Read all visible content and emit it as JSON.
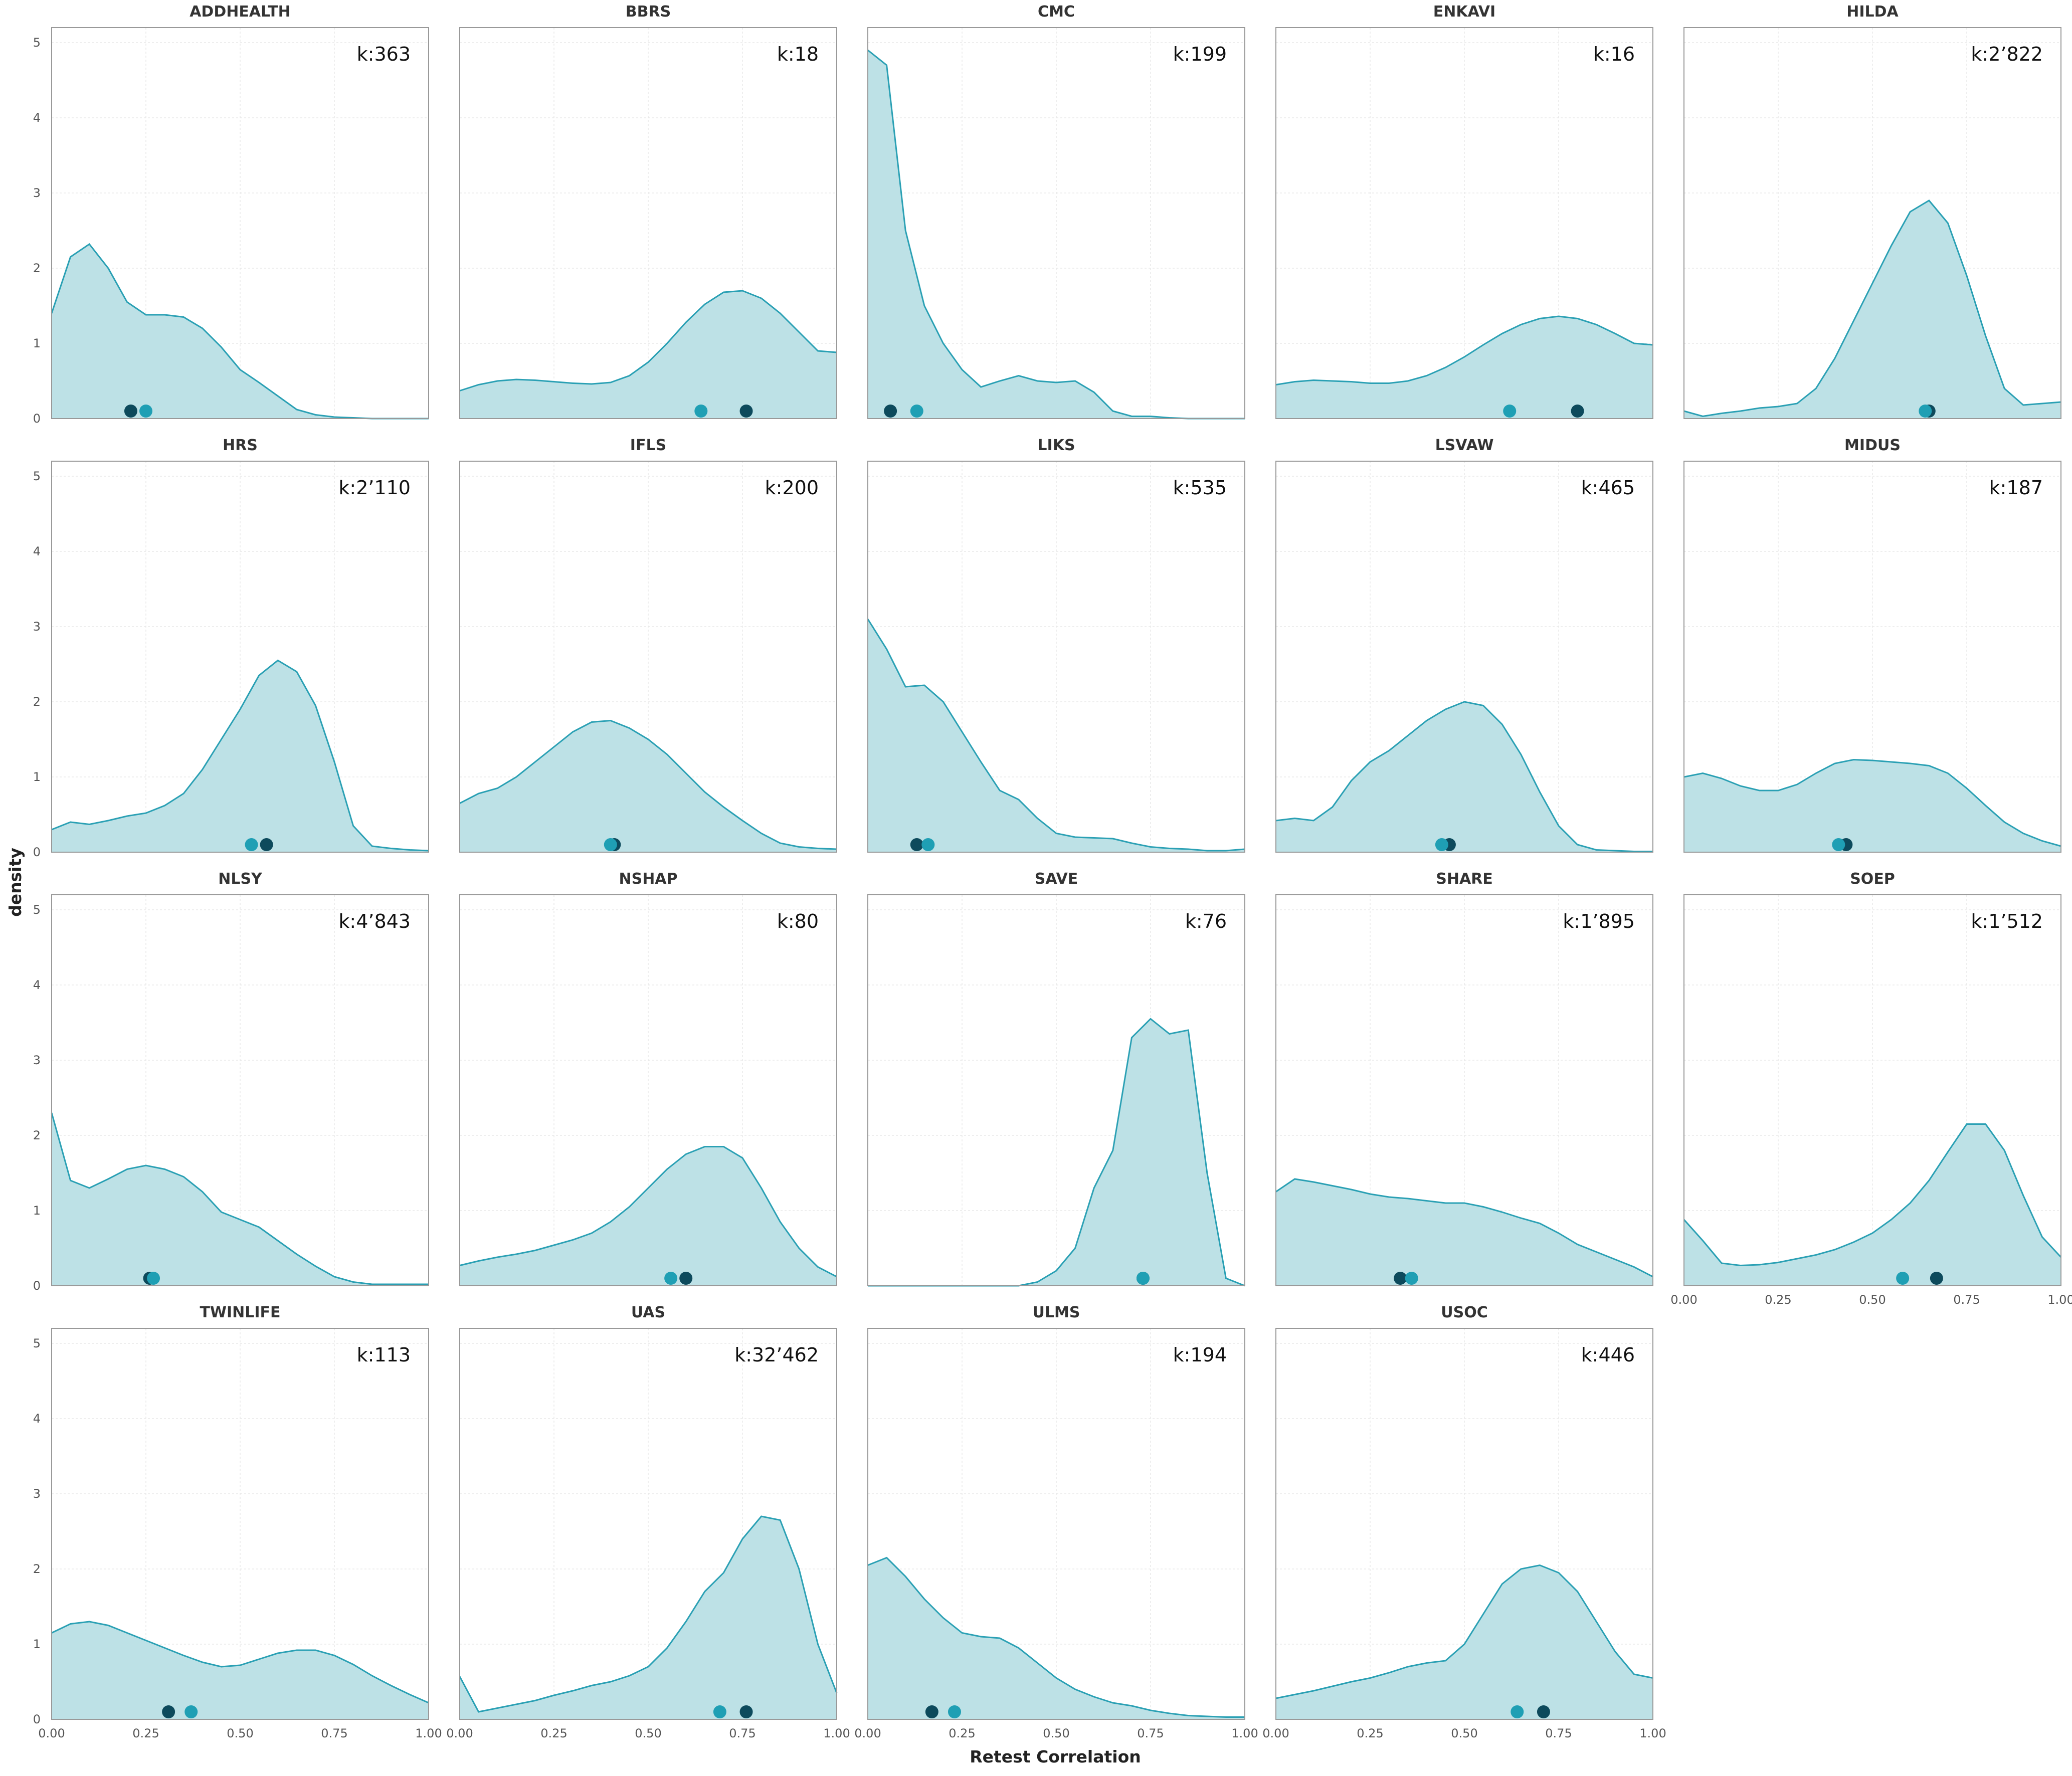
{
  "chart_data": {
    "type": "area",
    "xlabel": "Retest Correlation",
    "ylabel": "density",
    "xlim": [
      0,
      1
    ],
    "ylim": [
      0,
      5.2
    ],
    "x_ticks": [
      "0.00",
      "0.25",
      "0.50",
      "0.75",
      "1.00"
    ],
    "y_ticks": [
      "0",
      "1",
      "2",
      "3",
      "4",
      "5"
    ],
    "grid": true,
    "colors": {
      "fill": "#bde1e6",
      "line": "#2aa0b4",
      "dot_dark": "#0d4a5c",
      "dot_light": "#1f9fb4",
      "frame": "#999999"
    },
    "x": [
      0,
      0.05,
      0.1,
      0.15,
      0.2,
      0.25,
      0.3,
      0.35,
      0.4,
      0.45,
      0.5,
      0.55,
      0.6,
      0.65,
      0.7,
      0.75,
      0.8,
      0.85,
      0.9,
      0.95,
      1.0
    ],
    "panels": [
      {
        "name": "ADDHEALTH",
        "k": "k:363",
        "density": [
          1.4,
          2.15,
          2.32,
          2.0,
          1.55,
          1.38,
          1.38,
          1.35,
          1.2,
          0.95,
          0.65,
          0.48,
          0.3,
          0.12,
          0.05,
          0.02,
          0.01,
          0.0,
          0.0,
          0.0,
          0.0
        ],
        "dark": 0.21,
        "light": 0.25
      },
      {
        "name": "BBRS",
        "k": "k:18",
        "density": [
          0.37,
          0.45,
          0.5,
          0.52,
          0.51,
          0.49,
          0.47,
          0.46,
          0.48,
          0.57,
          0.75,
          1.0,
          1.28,
          1.52,
          1.68,
          1.7,
          1.6,
          1.4,
          1.15,
          0.9,
          0.88
        ],
        "dark": 0.76,
        "light": 0.64
      },
      {
        "name": "CMC",
        "k": "k:199",
        "density": [
          4.9,
          4.7,
          2.5,
          1.5,
          1.0,
          0.65,
          0.42,
          0.5,
          0.57,
          0.5,
          0.48,
          0.5,
          0.35,
          0.1,
          0.03,
          0.03,
          0.01,
          0.0,
          0.0,
          0.0,
          0.0
        ],
        "dark": 0.06,
        "light": 0.13
      },
      {
        "name": "ENKAVI",
        "k": "k:16",
        "density": [
          0.45,
          0.49,
          0.51,
          0.5,
          0.49,
          0.47,
          0.47,
          0.5,
          0.57,
          0.68,
          0.82,
          0.98,
          1.13,
          1.25,
          1.33,
          1.36,
          1.33,
          1.25,
          1.13,
          1.0,
          0.98
        ],
        "dark": 0.8,
        "light": 0.62
      },
      {
        "name": "HILDA",
        "k": "k:2’822",
        "density": [
          0.1,
          0.03,
          0.07,
          0.1,
          0.14,
          0.16,
          0.2,
          0.4,
          0.8,
          1.3,
          1.8,
          2.3,
          2.75,
          2.9,
          2.6,
          1.9,
          1.1,
          0.4,
          0.18,
          0.2,
          0.22
        ],
        "dark": 0.65,
        "light": 0.64
      },
      {
        "name": "HRS",
        "k": "k:2’110",
        "density": [
          0.3,
          0.4,
          0.37,
          0.42,
          0.48,
          0.52,
          0.62,
          0.78,
          1.1,
          1.5,
          1.9,
          2.35,
          2.55,
          2.4,
          1.95,
          1.2,
          0.35,
          0.08,
          0.05,
          0.03,
          0.02
        ],
        "dark": 0.57,
        "light": 0.53
      },
      {
        "name": "IFLS",
        "k": "k:200",
        "density": [
          0.65,
          0.78,
          0.85,
          1.0,
          1.2,
          1.4,
          1.6,
          1.73,
          1.75,
          1.65,
          1.5,
          1.3,
          1.05,
          0.8,
          0.6,
          0.42,
          0.25,
          0.12,
          0.07,
          0.05,
          0.04
        ],
        "dark": 0.41,
        "light": 0.4
      },
      {
        "name": "LIKS",
        "k": "k:535",
        "density": [
          3.1,
          2.7,
          2.2,
          2.22,
          2.0,
          1.6,
          1.2,
          0.82,
          0.7,
          0.45,
          0.25,
          0.2,
          0.19,
          0.18,
          0.12,
          0.07,
          0.05,
          0.04,
          0.02,
          0.02,
          0.04
        ],
        "dark": 0.13,
        "light": 0.16
      },
      {
        "name": "LSVAW",
        "k": "k:465",
        "density": [
          0.42,
          0.45,
          0.42,
          0.6,
          0.95,
          1.2,
          1.35,
          1.55,
          1.75,
          1.9,
          2.0,
          1.95,
          1.7,
          1.3,
          0.8,
          0.35,
          0.1,
          0.03,
          0.02,
          0.01,
          0.01
        ],
        "dark": 0.46,
        "light": 0.44
      },
      {
        "name": "MIDUS",
        "k": "k:187",
        "density": [
          1.0,
          1.05,
          0.98,
          0.88,
          0.82,
          0.82,
          0.9,
          1.05,
          1.18,
          1.23,
          1.22,
          1.2,
          1.18,
          1.15,
          1.05,
          0.85,
          0.62,
          0.4,
          0.25,
          0.15,
          0.08
        ],
        "dark": 0.43,
        "light": 0.41
      },
      {
        "name": "NLSY",
        "k": "k:4’843",
        "density": [
          2.3,
          1.4,
          1.3,
          1.42,
          1.55,
          1.6,
          1.55,
          1.45,
          1.25,
          0.98,
          0.88,
          0.78,
          0.6,
          0.42,
          0.26,
          0.12,
          0.05,
          0.02,
          0.02,
          0.02,
          0.02
        ],
        "dark": 0.26,
        "light": 0.27
      },
      {
        "name": "NSHAP",
        "k": "k:80",
        "density": [
          0.27,
          0.33,
          0.38,
          0.42,
          0.47,
          0.54,
          0.61,
          0.7,
          0.85,
          1.05,
          1.3,
          1.55,
          1.75,
          1.85,
          1.85,
          1.7,
          1.3,
          0.85,
          0.5,
          0.25,
          0.12
        ],
        "dark": 0.6,
        "light": 0.56
      },
      {
        "name": "SAVE",
        "k": "k:76",
        "density": [
          0.0,
          0.0,
          0.0,
          0.0,
          0.0,
          0.0,
          0.0,
          0.0,
          0.0,
          0.05,
          0.2,
          0.5,
          1.3,
          1.8,
          3.3,
          3.55,
          3.35,
          3.4,
          1.5,
          0.1,
          0.0
        ],
        "dark": 0.73,
        "light": 0.73
      },
      {
        "name": "SHARE",
        "k": "k:1’895",
        "density": [
          1.25,
          1.42,
          1.38,
          1.33,
          1.28,
          1.22,
          1.18,
          1.16,
          1.13,
          1.1,
          1.1,
          1.05,
          0.98,
          0.9,
          0.83,
          0.7,
          0.55,
          0.45,
          0.35,
          0.25,
          0.12
        ],
        "dark": 0.33,
        "light": 0.36
      },
      {
        "name": "SOEP",
        "k": "k:1’512",
        "density": [
          0.88,
          0.6,
          0.3,
          0.27,
          0.28,
          0.31,
          0.36,
          0.41,
          0.48,
          0.58,
          0.7,
          0.88,
          1.1,
          1.4,
          1.78,
          2.15,
          2.15,
          1.8,
          1.2,
          0.65,
          0.38
        ],
        "dark": 0.67,
        "light": 0.58
      },
      {
        "name": "TWINLIFE",
        "k": "k:113",
        "density": [
          1.15,
          1.27,
          1.3,
          1.25,
          1.15,
          1.05,
          0.95,
          0.85,
          0.76,
          0.7,
          0.72,
          0.8,
          0.88,
          0.92,
          0.92,
          0.85,
          0.73,
          0.58,
          0.45,
          0.33,
          0.22
        ],
        "dark": 0.31,
        "light": 0.37
      },
      {
        "name": "UAS",
        "k": "k:32’462",
        "density": [
          0.57,
          0.1,
          0.15,
          0.2,
          0.25,
          0.32,
          0.38,
          0.45,
          0.5,
          0.58,
          0.7,
          0.95,
          1.3,
          1.7,
          1.95,
          2.4,
          2.7,
          2.65,
          2.0,
          1.0,
          0.35
        ],
        "dark": 0.76,
        "light": 0.69
      },
      {
        "name": "ULMS",
        "k": "k:194",
        "density": [
          2.05,
          2.15,
          1.9,
          1.6,
          1.35,
          1.15,
          1.1,
          1.08,
          0.95,
          0.75,
          0.55,
          0.4,
          0.3,
          0.22,
          0.18,
          0.12,
          0.08,
          0.05,
          0.04,
          0.03,
          0.03
        ],
        "dark": 0.17,
        "light": 0.23
      },
      {
        "name": "USOC",
        "k": "k:446",
        "density": [
          0.28,
          0.33,
          0.38,
          0.44,
          0.5,
          0.55,
          0.62,
          0.7,
          0.75,
          0.78,
          1.0,
          1.4,
          1.8,
          2.0,
          2.05,
          1.95,
          1.7,
          1.3,
          0.9,
          0.6,
          0.55
        ],
        "dark": 0.71,
        "light": 0.64
      }
    ]
  }
}
